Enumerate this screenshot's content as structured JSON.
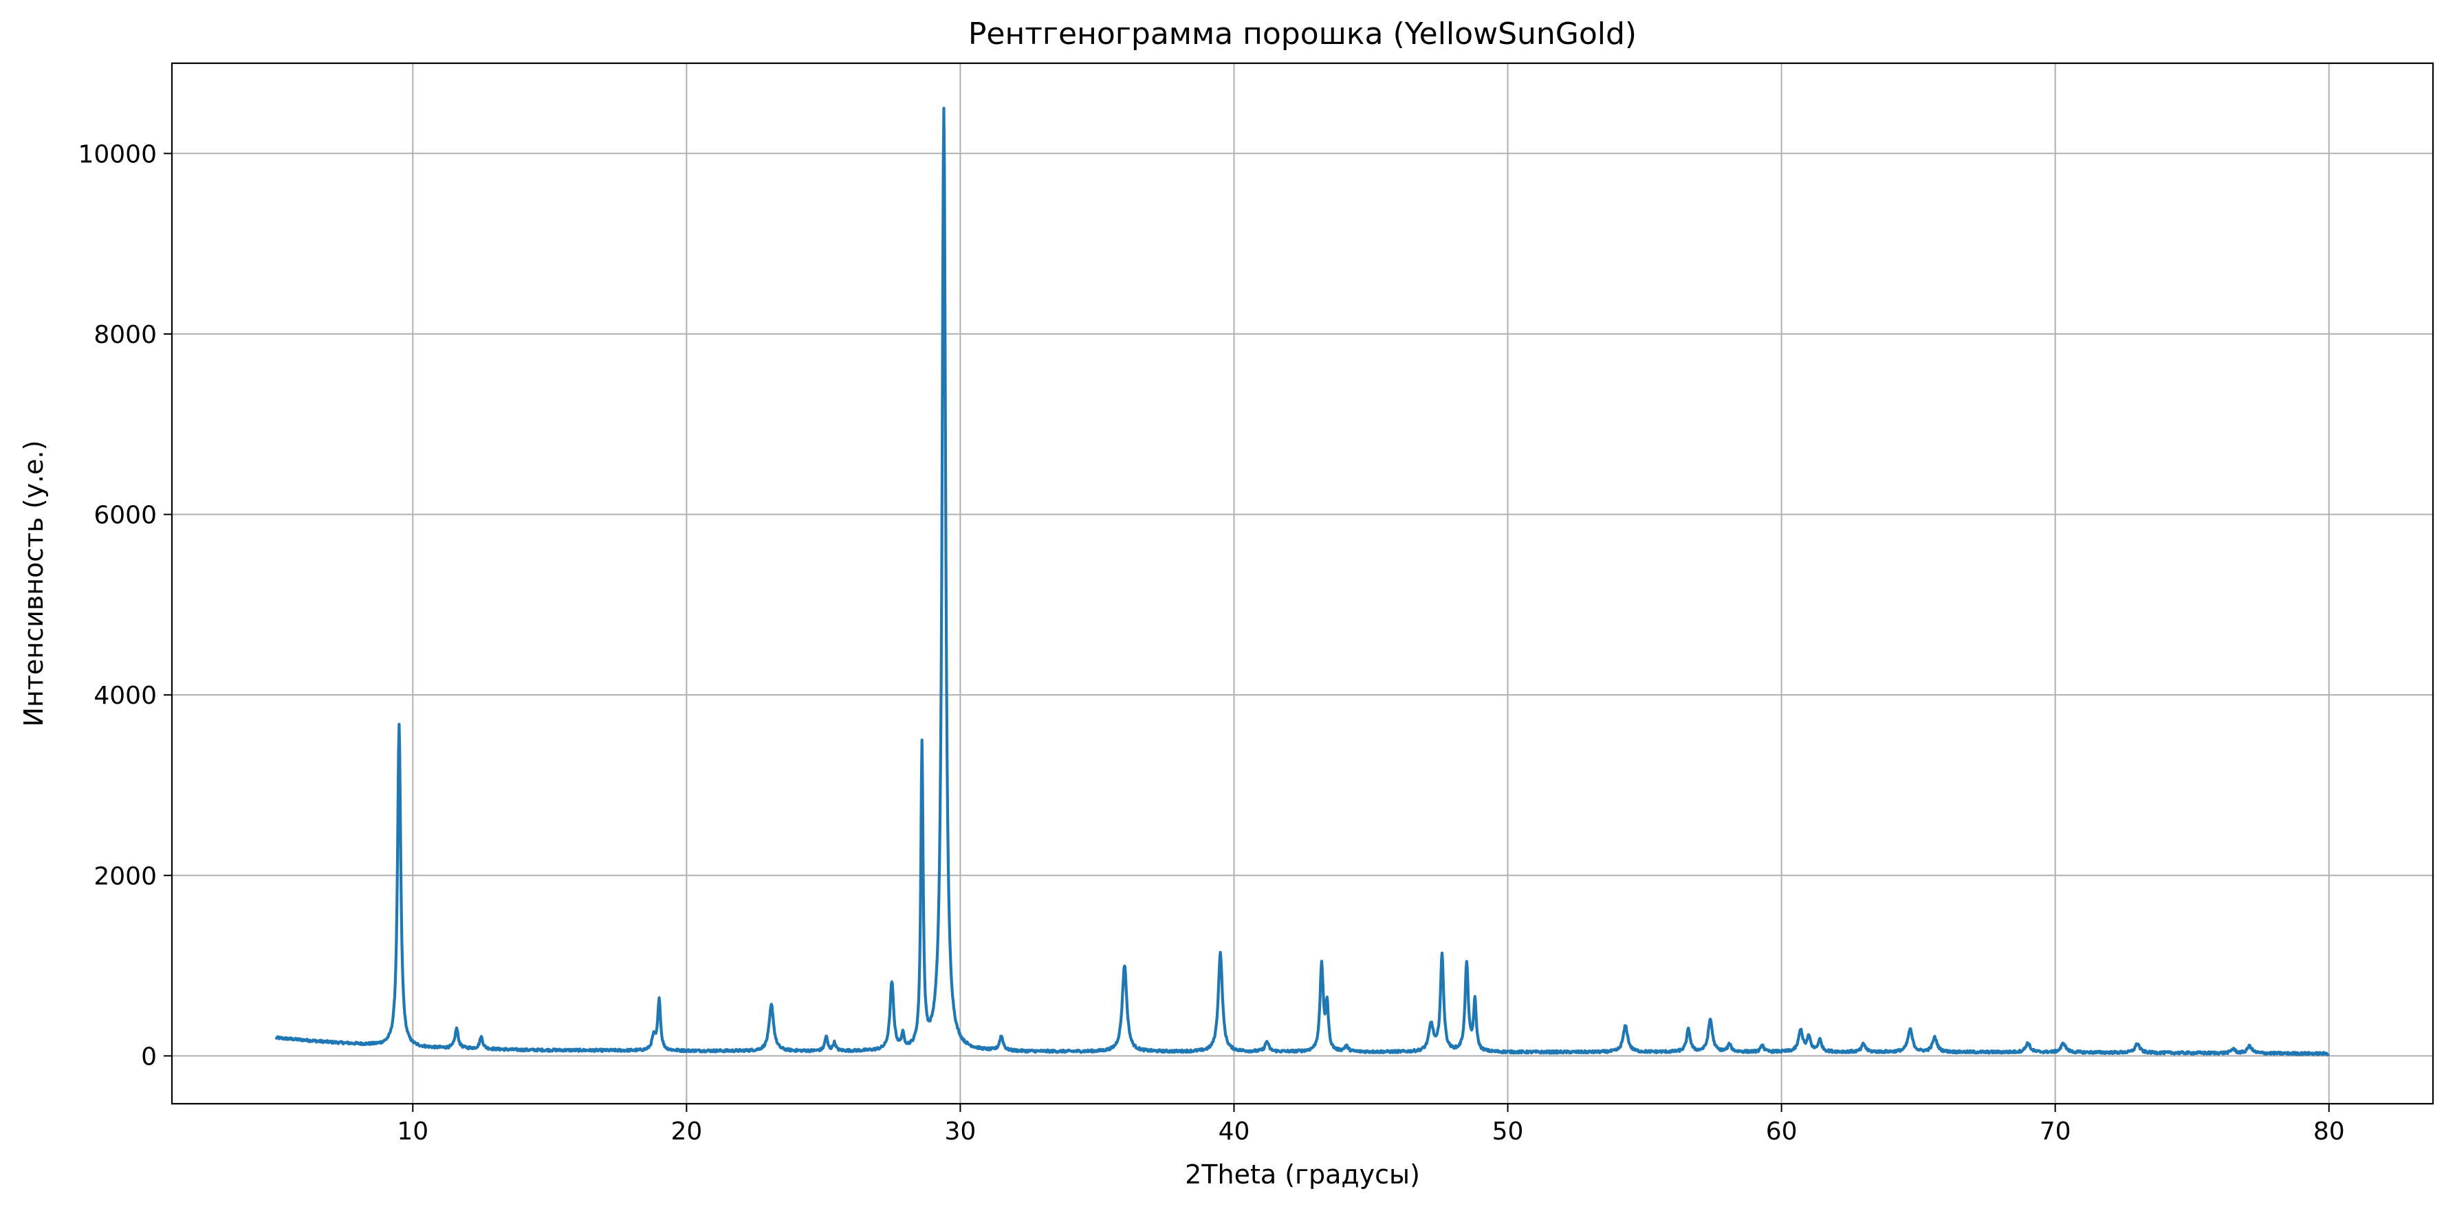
{
  "chart_data": {
    "type": "line",
    "title": "Рентгенограмма порошка (YellowSunGold)",
    "xlabel": "2Theta (градусы)",
    "ylabel": "Интенсивность (у.е.)",
    "xlim": [
      1.2,
      83.8
    ],
    "ylim": [
      -530,
      11000
    ],
    "x_ticks": [
      10,
      20,
      30,
      40,
      50,
      60,
      70,
      80
    ],
    "y_ticks": [
      0,
      2000,
      4000,
      6000,
      8000,
      10000
    ],
    "grid": true,
    "legend": "none",
    "series": [
      {
        "color": "#1f77b4",
        "x_range": [
          5,
          80
        ],
        "baseline": [
          [
            5,
            200
          ],
          [
            6,
            175
          ],
          [
            7,
            150
          ],
          [
            8,
            130
          ],
          [
            9,
            110
          ],
          [
            10,
            90
          ],
          [
            12,
            80
          ],
          [
            14,
            65
          ],
          [
            20,
            55
          ],
          [
            30,
            45
          ],
          [
            40,
            45
          ],
          [
            50,
            40
          ],
          [
            60,
            45
          ],
          [
            70,
            40
          ],
          [
            80,
            25
          ]
        ],
        "peaks": [
          [
            9.5,
            3560,
            0.07
          ],
          [
            11.6,
            220,
            0.07
          ],
          [
            12.5,
            130,
            0.07
          ],
          [
            18.8,
            150,
            0.08
          ],
          [
            19.0,
            580,
            0.06
          ],
          [
            23.1,
            510,
            0.1
          ],
          [
            25.1,
            160,
            0.06
          ],
          [
            25.4,
            90,
            0.06
          ],
          [
            27.5,
            750,
            0.08
          ],
          [
            27.9,
            150,
            0.06
          ],
          [
            28.6,
            3340,
            0.05
          ],
          [
            29.4,
            10430,
            0.08
          ],
          [
            31.5,
            160,
            0.08
          ],
          [
            36.0,
            960,
            0.1
          ],
          [
            39.5,
            1090,
            0.09
          ],
          [
            41.2,
            110,
            0.08
          ],
          [
            43.2,
            960,
            0.07
          ],
          [
            43.4,
            500,
            0.06
          ],
          [
            44.1,
            60,
            0.08
          ],
          [
            47.2,
            300,
            0.1
          ],
          [
            47.6,
            1070,
            0.07
          ],
          [
            48.5,
            980,
            0.07
          ],
          [
            48.8,
            550,
            0.06
          ],
          [
            54.3,
            290,
            0.1
          ],
          [
            56.6,
            250,
            0.08
          ],
          [
            57.4,
            360,
            0.09
          ],
          [
            58.1,
            80,
            0.08
          ],
          [
            59.3,
            80,
            0.06
          ],
          [
            60.7,
            240,
            0.09
          ],
          [
            61.0,
            160,
            0.08
          ],
          [
            61.4,
            130,
            0.08
          ],
          [
            63.0,
            90,
            0.08
          ],
          [
            64.7,
            250,
            0.1
          ],
          [
            65.6,
            160,
            0.1
          ],
          [
            69.0,
            100,
            0.1
          ],
          [
            70.3,
            100,
            0.1
          ],
          [
            73.0,
            100,
            0.1
          ],
          [
            76.5,
            50,
            0.08
          ],
          [
            77.1,
            80,
            0.1
          ]
        ]
      }
    ]
  }
}
